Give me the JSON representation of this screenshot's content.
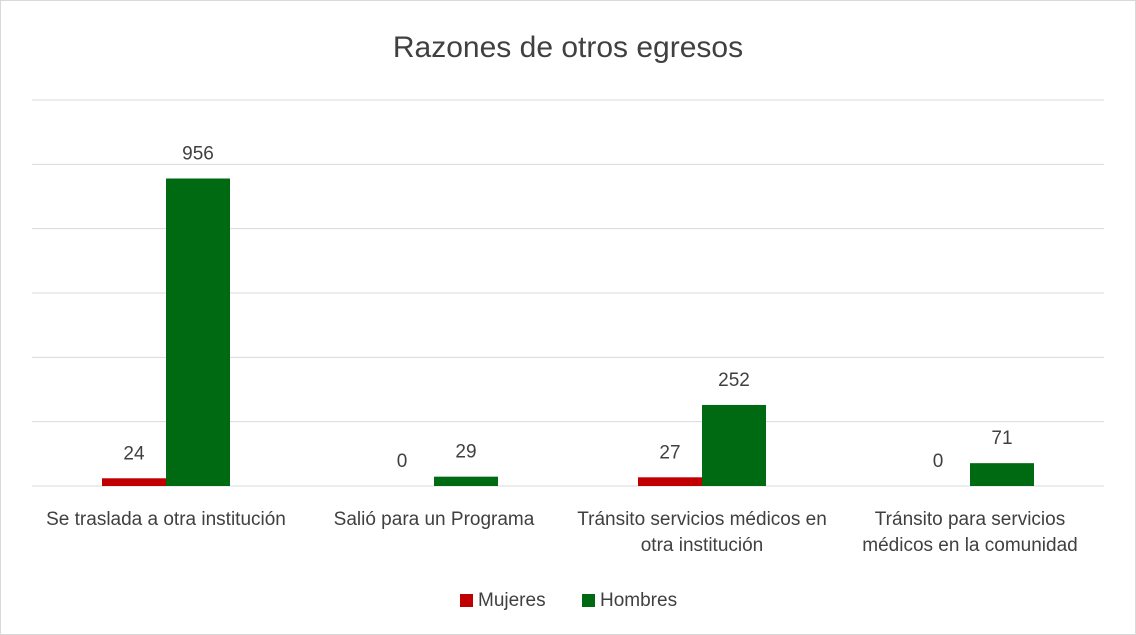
{
  "chart_data": {
    "type": "bar",
    "title": "Razones de otros egresos",
    "categories": [
      "Se traslada a otra institución",
      "Salió para un Programa",
      "Tránsito servicios médicos en otra institución",
      "Tránsito para servicios médicos en la comunidad"
    ],
    "series": [
      {
        "name": "Mujeres",
        "color": "#c00000",
        "values": [
          24,
          0,
          27,
          0
        ]
      },
      {
        "name": "Hombres",
        "color": "#006a12",
        "values": [
          956,
          29,
          252,
          71
        ]
      }
    ],
    "ylim": [
      0,
      1200
    ],
    "yticks": [
      0,
      200,
      400,
      600,
      800,
      1000,
      1200
    ],
    "grid": true,
    "legend": "bottom"
  }
}
